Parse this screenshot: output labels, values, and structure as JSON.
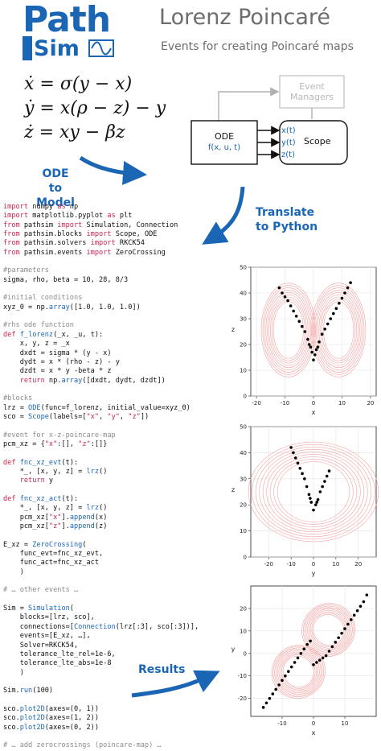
{
  "logo": {
    "word_top": "Path",
    "word_bottom": "Sim"
  },
  "header": {
    "title": "Lorenz Poincaré",
    "subtitle": "Events for creating Poincaré maps"
  },
  "equations": [
    "ẋ = σ(y − x)",
    "ẏ = x(ρ − z) − y",
    "ż = xy − βz"
  ],
  "labels": {
    "ode_to_model": [
      "ODE to",
      "Model"
    ],
    "translate": [
      "Translate",
      "to Python"
    ],
    "results": "Results"
  },
  "block_diagram": {
    "event_managers": [
      "Event",
      "Managers"
    ],
    "ode_title": "ODE",
    "ode_sub": "f(x, u, t)",
    "ports": [
      "x(t)",
      "y(t)",
      "z(t)"
    ],
    "scope_label": "Scope"
  },
  "code_lines": [
    [
      [
        "kw",
        "import"
      ],
      [
        "t",
        " numpy "
      ],
      [
        "kw",
        "as"
      ],
      [
        "t",
        " np"
      ]
    ],
    [
      [
        "kw",
        "import"
      ],
      [
        "t",
        " matplotlib.pyplot "
      ],
      [
        "kw",
        "as"
      ],
      [
        "t",
        " plt"
      ]
    ],
    [
      [
        "kw",
        "from"
      ],
      [
        "t",
        " pathsim "
      ],
      [
        "kw",
        "import"
      ],
      [
        "t",
        " Simulation, Connection"
      ]
    ],
    [
      [
        "kw",
        "from"
      ],
      [
        "t",
        " pathsim.blocks "
      ],
      [
        "kw",
        "import"
      ],
      [
        "t",
        " Scope, ODE"
      ]
    ],
    [
      [
        "kw",
        "from"
      ],
      [
        "t",
        " pathsim.solvers "
      ],
      [
        "kw",
        "import"
      ],
      [
        "t",
        " RKCK54"
      ]
    ],
    [
      [
        "kw",
        "from"
      ],
      [
        "t",
        " pathsim.events "
      ],
      [
        "kw",
        "import"
      ],
      [
        "t",
        " ZeroCrossing"
      ]
    ],
    [],
    [
      [
        "cm",
        "#parameters"
      ]
    ],
    [
      [
        "t",
        "sigma, rho, beta = 10, 28, 8/3"
      ]
    ],
    [],
    [
      [
        "cm",
        "#initial conditions"
      ]
    ],
    [
      [
        "t",
        "xyz_0 = np."
      ],
      [
        "fn",
        "array"
      ],
      [
        "t",
        "([1.0, 1.0, 1.0])"
      ]
    ],
    [],
    [
      [
        "cm",
        "#rhs ode function"
      ]
    ],
    [
      [
        "kw",
        "def"
      ],
      [
        "t",
        " "
      ],
      [
        "fn",
        "f_lorenz"
      ],
      [
        "t",
        "(_x, _u, t):"
      ]
    ],
    [
      [
        "t",
        "    x, y, z = _x"
      ]
    ],
    [
      [
        "t",
        "    dxdt = sigma * (y - x)"
      ]
    ],
    [
      [
        "t",
        "    dydt = x * (rho - z) - y"
      ]
    ],
    [
      [
        "t",
        "    dzdt = x * y -beta * z"
      ]
    ],
    [
      [
        "t",
        "    "
      ],
      [
        "kw",
        "return"
      ],
      [
        "t",
        " np."
      ],
      [
        "fn",
        "array"
      ],
      [
        "t",
        "([dxdt, dydt, dzdt])"
      ]
    ],
    [],
    [
      [
        "cm",
        "#blocks"
      ]
    ],
    [
      [
        "t",
        "lrz = "
      ],
      [
        "fn",
        "ODE"
      ],
      [
        "t",
        "(func=f_lorenz, initial_value=xyz_0)"
      ]
    ],
    [
      [
        "t",
        "sco = "
      ],
      [
        "fn",
        "Scope"
      ],
      [
        "t",
        "(labels=["
      ],
      [
        "st",
        "\"x\""
      ],
      [
        "t",
        ", "
      ],
      [
        "st",
        "\"y\""
      ],
      [
        "t",
        ", "
      ],
      [
        "st",
        "\"z\""
      ],
      [
        "t",
        "])"
      ]
    ],
    [],
    [
      [
        "cm",
        "#event for x-z-poincare-map"
      ]
    ],
    [
      [
        "t",
        "pcm_xz = {"
      ],
      [
        "st",
        "\"x\""
      ],
      [
        "t",
        ":[], "
      ],
      [
        "st",
        "\"z\""
      ],
      [
        "t",
        ":[]}"
      ]
    ],
    [],
    [
      [
        "kw",
        "def"
      ],
      [
        "t",
        " "
      ],
      [
        "fn",
        "fnc_xz_evt"
      ],
      [
        "t",
        "(t):"
      ]
    ],
    [
      [
        "t",
        "    *_, [x, y, z] = "
      ],
      [
        "fn",
        "lrz"
      ],
      [
        "t",
        "()"
      ]
    ],
    [
      [
        "t",
        "    "
      ],
      [
        "kw",
        "return"
      ],
      [
        "t",
        " y"
      ]
    ],
    [],
    [
      [
        "kw",
        "def"
      ],
      [
        "t",
        " "
      ],
      [
        "fn",
        "fnc_xz_act"
      ],
      [
        "t",
        "(t):"
      ]
    ],
    [
      [
        "t",
        "    *_, [x, y, z] = "
      ],
      [
        "fn",
        "lrz"
      ],
      [
        "t",
        "()"
      ]
    ],
    [
      [
        "t",
        "    pcm_xz["
      ],
      [
        "st",
        "\"x\""
      ],
      [
        "t",
        "]."
      ],
      [
        "fn",
        "append"
      ],
      [
        "t",
        "(x)"
      ]
    ],
    [
      [
        "t",
        "    pcm_xz["
      ],
      [
        "st",
        "\"z\""
      ],
      [
        "t",
        "]."
      ],
      [
        "fn",
        "append"
      ],
      [
        "t",
        "(z)"
      ]
    ],
    [],
    [
      [
        "t",
        "E_xz = "
      ],
      [
        "fn",
        "ZeroCrossing"
      ],
      [
        "t",
        "("
      ]
    ],
    [
      [
        "t",
        "    func_evt=fnc_xz_evt,"
      ]
    ],
    [
      [
        "t",
        "    func_act=fnc_xz_act"
      ]
    ],
    [
      [
        "t",
        "    )"
      ]
    ],
    [],
    [
      [
        "cm",
        "# … other events …"
      ]
    ],
    [],
    [
      [
        "t",
        "Sim = "
      ],
      [
        "fn",
        "Simulation"
      ],
      [
        "t",
        "("
      ]
    ],
    [
      [
        "t",
        "    blocks=[lrz, sco],"
      ]
    ],
    [
      [
        "t",
        "    connections=["
      ],
      [
        "fn",
        "Connection"
      ],
      [
        "t",
        "(lrz[:3], sco[:3])],"
      ]
    ],
    [
      [
        "t",
        "    events=[E_xz, …],"
      ]
    ],
    [
      [
        "t",
        "    Solver=RKCK54,"
      ]
    ],
    [
      [
        "t",
        "    tolerance_lte_rel=1e-6,"
      ]
    ],
    [
      [
        "t",
        "    tolerance_lte_abs=1e-8"
      ]
    ],
    [
      [
        "t",
        "    )"
      ]
    ],
    [],
    [
      [
        "t",
        "Sim."
      ],
      [
        "fn",
        "run"
      ],
      [
        "t",
        "(100)"
      ]
    ],
    [],
    [
      [
        "t",
        "sco."
      ],
      [
        "fn",
        "plot2D"
      ],
      [
        "t",
        "(axes=(0, 1))"
      ]
    ],
    [
      [
        "t",
        "sco."
      ],
      [
        "fn",
        "plot2D"
      ],
      [
        "t",
        "(axes=(1, 2))"
      ]
    ],
    [
      [
        "t",
        "sco."
      ],
      [
        "fn",
        "plot2D"
      ],
      [
        "t",
        "(axes=(0, 2))"
      ]
    ],
    [],
    [
      [
        "cm",
        "# … add zerocrossings (poincare-map) …"
      ]
    ]
  ],
  "chart_data": [
    {
      "type": "scatter",
      "xlabel": "x",
      "ylabel": "z",
      "xlim": [
        -22,
        22
      ],
      "ylim": [
        0,
        50
      ],
      "xticks": [
        -20,
        -10,
        0,
        10,
        20
      ],
      "yticks": [
        0,
        10,
        20,
        30,
        40,
        50
      ],
      "grid": true,
      "series": [
        {
          "points": [
            [
              -11,
              40
            ],
            [
              -10,
              38.5
            ],
            [
              -9,
              37
            ],
            [
              -8,
              35
            ],
            [
              -7,
              33
            ],
            [
              -6,
              31
            ],
            [
              -5,
              29
            ],
            [
              -4,
              27
            ],
            [
              -3,
              25
            ],
            [
              -2,
              22
            ],
            [
              -1,
              19
            ],
            [
              -0.5,
              17
            ],
            [
              0,
              14
            ],
            [
              0.5,
              16
            ],
            [
              1,
              18
            ],
            [
              2,
              21
            ],
            [
              3,
              24
            ],
            [
              4,
              26
            ],
            [
              5,
              28
            ],
            [
              6,
              30
            ],
            [
              7,
              32
            ],
            [
              8,
              34
            ],
            [
              9,
              36
            ],
            [
              10,
              38
            ],
            [
              11,
              40
            ],
            [
              12,
              42
            ],
            [
              13,
              44
            ],
            [
              -12,
              42
            ],
            [
              -1.5,
              20
            ],
            [
              1.5,
              19
            ]
          ]
        }
      ]
    },
    {
      "type": "scatter",
      "xlabel": "y",
      "ylabel": "z",
      "xlim": [
        -28,
        28
      ],
      "ylim": [
        0,
        50
      ],
      "xticks": [
        -20,
        -10,
        0,
        10,
        20
      ],
      "yticks": [
        0,
        10,
        20,
        30,
        40,
        50
      ],
      "grid": true,
      "series": [
        {
          "points": [
            [
              -9,
              40
            ],
            [
              -8,
              38
            ],
            [
              -7,
              36
            ],
            [
              -6,
              34
            ],
            [
              -5,
              32
            ],
            [
              -4,
              30
            ],
            [
              -3,
              27
            ],
            [
              -2,
              24
            ],
            [
              -1,
              21
            ],
            [
              0,
              18
            ],
            [
              1,
              20
            ],
            [
              2,
              22
            ],
            [
              3,
              25
            ],
            [
              4,
              27
            ],
            [
              5,
              29
            ],
            [
              6,
              31
            ],
            [
              7,
              33
            ],
            [
              -10,
              42
            ],
            [
              -1.5,
              22.5
            ],
            [
              1.5,
              21
            ]
          ]
        }
      ]
    },
    {
      "type": "scatter",
      "xlabel": "x",
      "ylabel": "y",
      "xlim": [
        -20,
        20
      ],
      "ylim": [
        -28,
        30
      ],
      "xticks": [
        -10,
        0,
        10
      ],
      "yticks": [
        -20,
        -10,
        0,
        10,
        20
      ],
      "grid": true,
      "series": [
        {
          "points": [
            [
              -16,
              -24
            ],
            [
              -15,
              -22
            ],
            [
              -14,
              -20
            ],
            [
              -13,
              -18
            ],
            [
              -12,
              -16
            ],
            [
              -11,
              -14
            ],
            [
              -10,
              -12
            ],
            [
              -9,
              -10
            ],
            [
              -8,
              -8
            ],
            [
              -7,
              -6
            ],
            [
              -6,
              -4
            ],
            [
              -5,
              -2
            ],
            [
              -4,
              0
            ],
            [
              -3,
              2
            ],
            [
              -2,
              4
            ],
            [
              -1,
              5.5
            ],
            [
              0,
              -5
            ],
            [
              1,
              -4
            ],
            [
              2,
              -3
            ],
            [
              3,
              -2
            ],
            [
              4,
              -1
            ],
            [
              5,
              1
            ],
            [
              6,
              3
            ],
            [
              7,
              5
            ],
            [
              8,
              7
            ],
            [
              9,
              9
            ],
            [
              10,
              11
            ],
            [
              11,
              13
            ],
            [
              12,
              15
            ],
            [
              13,
              17
            ],
            [
              14,
              19
            ],
            [
              15,
              21
            ],
            [
              16,
              23
            ],
            [
              17,
              26
            ]
          ]
        }
      ]
    }
  ]
}
